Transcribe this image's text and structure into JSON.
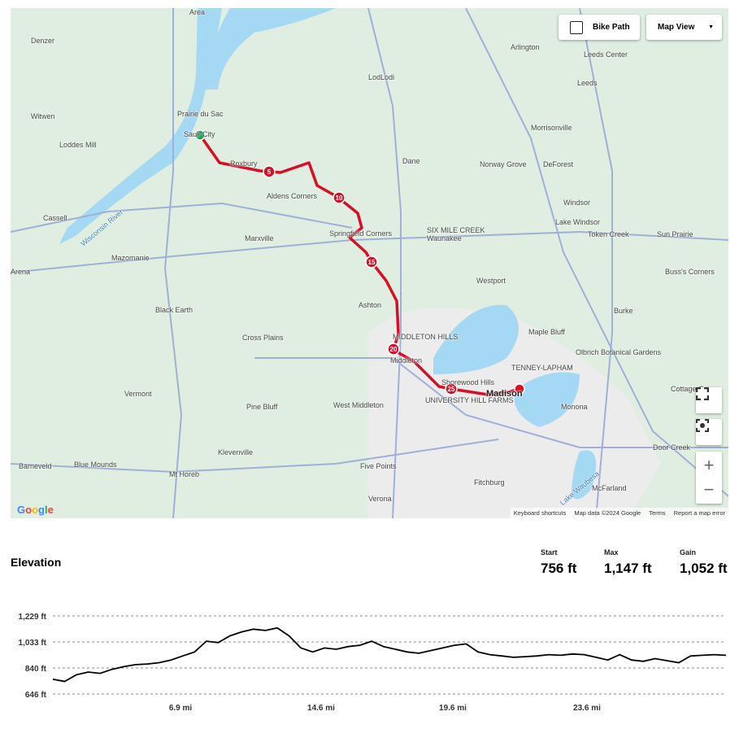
{
  "map": {
    "controls": {
      "bike_path_label": "Bike Path",
      "bike_path_checked": false,
      "map_view_label": "Map View",
      "fullscreen_icon": "fullscreen-icon",
      "recenter_icon": "recenter-icon",
      "zoom_in": "+",
      "zoom_out": "−"
    },
    "logo": "Google",
    "attribution": {
      "shortcuts": "Keyboard shortcuts",
      "data": "Map data ©2024 Google",
      "terms": "Terms",
      "report": "Report a map error"
    },
    "route_color": "#d50f25",
    "start_color": "#12a14b",
    "end_color": "#e0101e",
    "mile_markers": [
      "5",
      "10",
      "15",
      "20",
      "25"
    ],
    "places": [
      "Area",
      "Denzer",
      "Witwen",
      "Prairie du Sac",
      "Sauk City",
      "Lodi",
      "Arlington",
      "Leeds Center",
      "Leeds",
      "Lodi",
      "Loddes Mill",
      "Roxbury",
      "Dane",
      "Norway Grove",
      "DeForest",
      "Morrisonville",
      "Aldens Corners",
      "Windsor",
      "Cassell",
      "Marxville",
      "Springfield Corners",
      "SIX MILE CREEK",
      "Waunakee",
      "Lake Windsor",
      "Token Creek",
      "Mazomanie",
      "Arena",
      "Sun Prairie",
      "Buss's Corners",
      "Westport",
      "Ashton",
      "Black Earth",
      "Cross Plains",
      "MIDDLETON HILLS",
      "Maple Bluff",
      "Burke",
      "Middleton",
      "Olbrich Botanical Gardens",
      "TENNEY-LAPHAM",
      "Shorewood Hills",
      "Madison",
      "UNIVERSITY HILL FARMS",
      "Vermont",
      "Pine Bluff",
      "West Middleton",
      "Monona",
      "Cottage G",
      "Klevenville",
      "Door Creek",
      "Barneveld",
      "Blue Mounds",
      "Mt Horeb",
      "Five Points",
      "Fitchburg",
      "McFarland",
      "Verona",
      "Lake Waubesa",
      "Wisconsin River"
    ]
  },
  "elevation": {
    "title": "Elevation",
    "stats": [
      {
        "label": "Start",
        "value": "756 ft"
      },
      {
        "label": "Max",
        "value": "1,147 ft"
      },
      {
        "label": "Gain",
        "value": "1,052 ft"
      }
    ]
  },
  "chart_data": {
    "type": "line",
    "title": "Elevation",
    "y_ticks": [
      "1,229 ft",
      "1,033 ft",
      "840 ft",
      "646 ft"
    ],
    "x_ticks": [
      "6.9 mi",
      "14.6 mi",
      "19.6 mi",
      "23.6 mi"
    ],
    "ylim": [
      646,
      1229
    ],
    "grid": true,
    "series": [
      {
        "values": [
          756,
          740,
          790,
          810,
          800,
          830,
          850,
          865,
          870,
          880,
          900,
          930,
          960,
          1040,
          1030,
          1080,
          1110,
          1130,
          1120,
          1140,
          1080,
          990,
          960,
          990,
          980,
          1000,
          1010,
          1040,
          1000,
          980,
          960,
          950,
          970,
          990,
          1010,
          1020,
          960,
          940,
          930,
          920,
          925,
          930,
          940,
          935,
          945,
          940,
          920,
          900,
          940,
          900,
          890,
          910,
          895,
          880,
          930,
          935,
          940,
          935
        ]
      }
    ]
  }
}
